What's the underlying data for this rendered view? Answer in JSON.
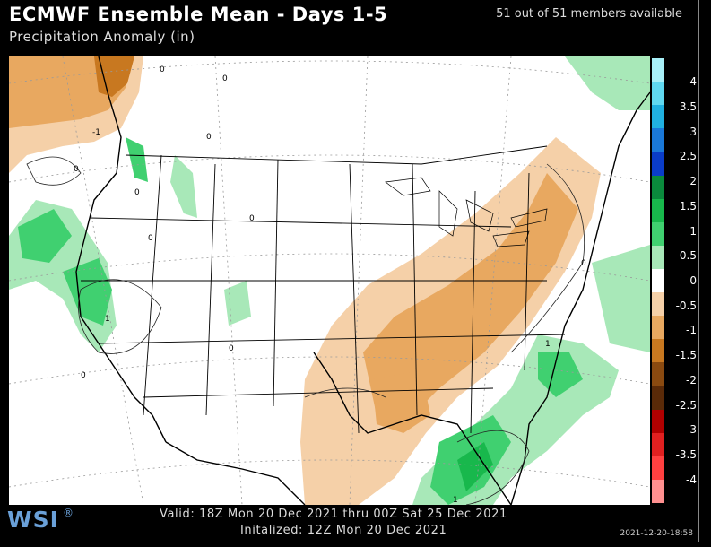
{
  "header": {
    "title": "ECMWF Ensemble Mean - Days 1-5",
    "subtitle": "Precipitation Anomaly (in)",
    "members": "51 out of 51 members available"
  },
  "footer": {
    "valid": "Valid: 18Z Mon 20 Dec 2021 thru 00Z Sat 25 Dec 2021",
    "initialized": "Initalized: 12Z Mon 20 Dec 2021",
    "logo": "WSI",
    "logo_mark": "®",
    "timestamp": "2021-12-20-18:58"
  },
  "legend": {
    "labels": [
      "4",
      "3.5",
      "3",
      "2.5",
      "2",
      "1.5",
      "1",
      "0.5",
      "0",
      "-0.5",
      "-1",
      "-1.5",
      "-2",
      "-2.5",
      "-3",
      "-3.5",
      "-4"
    ],
    "colors": [
      "#a8f0f8",
      "#60d8f0",
      "#20b0e0",
      "#1a78d8",
      "#0a3cc8",
      "#0a8a3c",
      "#18b84c",
      "#40d070",
      "#a8e8b8",
      "#ffffff",
      "#f5d0a8",
      "#e8a860",
      "#c87820",
      "#8a4a10",
      "#5a2a08",
      "#b00000",
      "#e02020",
      "#ff4040",
      "#ff9090"
    ]
  },
  "map": {
    "contour_labels": [
      "0",
      "0",
      "0",
      "0",
      "0",
      "0",
      "0",
      "0",
      "-1",
      "1",
      "1",
      "1",
      "0",
      "0"
    ]
  }
}
